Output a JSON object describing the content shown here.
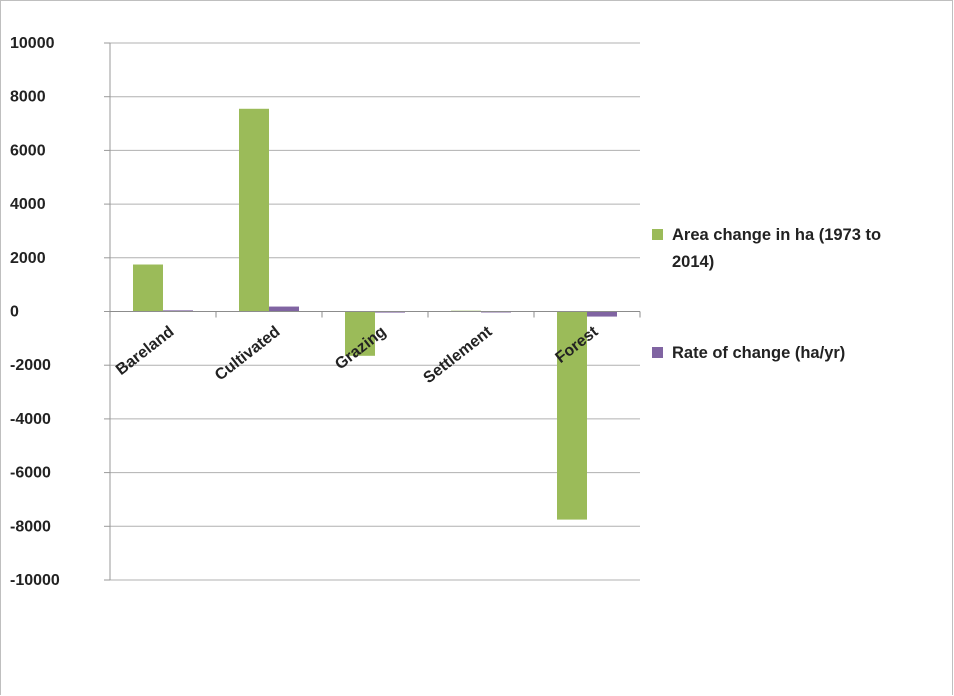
{
  "chart_data": {
    "type": "bar",
    "categories": [
      "Bareland",
      "Cultivated",
      "Grazing",
      "Settlement",
      "Forest"
    ],
    "series": [
      {
        "name": "Area change in ha (1973 to 2014)",
        "color": "#9bbb59",
        "values": [
          1750,
          7550,
          -1650,
          30,
          -7750
        ]
      },
      {
        "name": "Rate of change (ha/yr)",
        "color": "#8064a2",
        "values": [
          43,
          184,
          -40,
          1,
          -189
        ]
      }
    ],
    "legend_lines": [
      [
        "Area change in ha (1973 to",
        "2014)"
      ],
      [
        "Rate of change (ha/yr)"
      ]
    ],
    "yticks": [
      10000,
      8000,
      6000,
      4000,
      2000,
      0,
      -2000,
      -4000,
      -6000,
      -8000,
      -10000
    ],
    "ylim": [
      -10000,
      10000
    ],
    "grid": true,
    "legend_position": "right"
  }
}
